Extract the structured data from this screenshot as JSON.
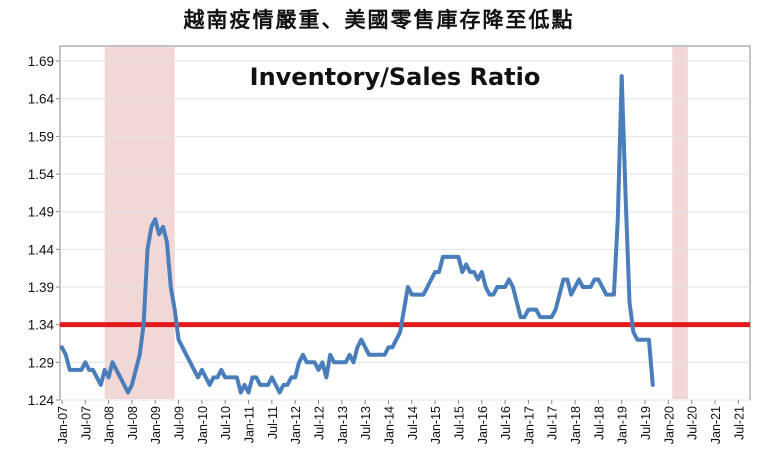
{
  "page": {
    "title": "越南疫情嚴重、美國零售庫存降至低點"
  },
  "chart_data": {
    "type": "line",
    "title": "Inventory/Sales Ratio",
    "xlabel": "",
    "ylabel": "",
    "ylim": [
      1.24,
      1.71
    ],
    "xlim": [
      "2007-01",
      "2021-10"
    ],
    "y_ticks": [
      "1.69",
      "1.64",
      "1.59",
      "1.54",
      "1.49",
      "1.44",
      "1.39",
      "1.34",
      "1.29",
      "1.24"
    ],
    "x_ticks": [
      "Jan-07",
      "Jul-07",
      "Jan-08",
      "Jul-08",
      "Jan-09",
      "Jul-09",
      "Jan-10",
      "Jul-10",
      "Jan-11",
      "Jul-11",
      "Jan-12",
      "Jul-12",
      "Jan-13",
      "Jul-13",
      "Jan-14",
      "Jul-14",
      "Jan-15",
      "Jul-15",
      "Jan-16",
      "Jul-16",
      "Jan-17",
      "Jul-17",
      "Jan-18",
      "Jul-18",
      "Jan-19",
      "Jul-19",
      "Jan-20",
      "Jul-20",
      "Jan-21",
      "Jul-21"
    ],
    "reference_line": {
      "value": 1.34,
      "color": "#e31a1c"
    },
    "recession_bands": [
      {
        "start": "2007-12",
        "end": "2009-06",
        "color": "#f2d7d7"
      },
      {
        "start": "2020-02",
        "end": "2020-06",
        "color": "#f2d7d7"
      }
    ],
    "grid": "horizontal",
    "series": [
      {
        "color": "#4a7ebb",
        "points": [
          [
            "2007-01",
            1.31
          ],
          [
            "2007-02",
            1.3
          ],
          [
            "2007-03",
            1.28
          ],
          [
            "2007-04",
            1.28
          ],
          [
            "2007-05",
            1.28
          ],
          [
            "2007-06",
            1.28
          ],
          [
            "2007-07",
            1.29
          ],
          [
            "2007-08",
            1.28
          ],
          [
            "2007-09",
            1.28
          ],
          [
            "2007-10",
            1.27
          ],
          [
            "2007-11",
            1.26
          ],
          [
            "2007-12",
            1.28
          ],
          [
            "2008-01",
            1.27
          ],
          [
            "2008-02",
            1.29
          ],
          [
            "2008-03",
            1.28
          ],
          [
            "2008-04",
            1.27
          ],
          [
            "2008-05",
            1.26
          ],
          [
            "2008-06",
            1.25
          ],
          [
            "2008-07",
            1.26
          ],
          [
            "2008-08",
            1.28
          ],
          [
            "2008-09",
            1.3
          ],
          [
            "2008-10",
            1.34
          ],
          [
            "2008-11",
            1.44
          ],
          [
            "2008-12",
            1.47
          ],
          [
            "2009-01",
            1.48
          ],
          [
            "2009-02",
            1.46
          ],
          [
            "2009-03",
            1.47
          ],
          [
            "2009-04",
            1.45
          ],
          [
            "2009-05",
            1.39
          ],
          [
            "2009-06",
            1.36
          ],
          [
            "2009-07",
            1.32
          ],
          [
            "2009-08",
            1.31
          ],
          [
            "2009-09",
            1.3
          ],
          [
            "2009-10",
            1.29
          ],
          [
            "2009-11",
            1.28
          ],
          [
            "2009-12",
            1.27
          ],
          [
            "2010-01",
            1.28
          ],
          [
            "2010-02",
            1.27
          ],
          [
            "2010-03",
            1.26
          ],
          [
            "2010-04",
            1.27
          ],
          [
            "2010-05",
            1.27
          ],
          [
            "2010-06",
            1.28
          ],
          [
            "2010-07",
            1.27
          ],
          [
            "2010-08",
            1.27
          ],
          [
            "2010-09",
            1.27
          ],
          [
            "2010-10",
            1.27
          ],
          [
            "2010-11",
            1.25
          ],
          [
            "2010-12",
            1.26
          ],
          [
            "2011-01",
            1.25
          ],
          [
            "2011-02",
            1.27
          ],
          [
            "2011-03",
            1.27
          ],
          [
            "2011-04",
            1.26
          ],
          [
            "2011-05",
            1.26
          ],
          [
            "2011-06",
            1.26
          ],
          [
            "2011-07",
            1.27
          ],
          [
            "2011-08",
            1.26
          ],
          [
            "2011-09",
            1.25
          ],
          [
            "2011-10",
            1.26
          ],
          [
            "2011-11",
            1.26
          ],
          [
            "2011-12",
            1.27
          ],
          [
            "2012-01",
            1.27
          ],
          [
            "2012-02",
            1.29
          ],
          [
            "2012-03",
            1.3
          ],
          [
            "2012-04",
            1.29
          ],
          [
            "2012-05",
            1.29
          ],
          [
            "2012-06",
            1.29
          ],
          [
            "2012-07",
            1.28
          ],
          [
            "2012-08",
            1.29
          ],
          [
            "2012-09",
            1.27
          ],
          [
            "2012-10",
            1.3
          ],
          [
            "2012-11",
            1.29
          ],
          [
            "2012-12",
            1.29
          ],
          [
            "2013-01",
            1.29
          ],
          [
            "2013-02",
            1.29
          ],
          [
            "2013-03",
            1.3
          ],
          [
            "2013-04",
            1.29
          ],
          [
            "2013-05",
            1.31
          ],
          [
            "2013-06",
            1.32
          ],
          [
            "2013-07",
            1.31
          ],
          [
            "2013-08",
            1.3
          ],
          [
            "2013-09",
            1.3
          ],
          [
            "2013-10",
            1.3
          ],
          [
            "2013-11",
            1.3
          ],
          [
            "2013-12",
            1.3
          ],
          [
            "2014-01",
            1.31
          ],
          [
            "2014-02",
            1.31
          ],
          [
            "2014-03",
            1.32
          ],
          [
            "2014-04",
            1.33
          ],
          [
            "2014-05",
            1.36
          ],
          [
            "2014-06",
            1.39
          ],
          [
            "2014-07",
            1.38
          ],
          [
            "2014-08",
            1.38
          ],
          [
            "2014-09",
            1.38
          ],
          [
            "2014-10",
            1.38
          ],
          [
            "2014-11",
            1.39
          ],
          [
            "2014-12",
            1.4
          ],
          [
            "2015-01",
            1.41
          ],
          [
            "2015-02",
            1.41
          ],
          [
            "2015-03",
            1.43
          ],
          [
            "2015-04",
            1.43
          ],
          [
            "2015-05",
            1.43
          ],
          [
            "2015-06",
            1.43
          ],
          [
            "2015-07",
            1.43
          ],
          [
            "2015-08",
            1.41
          ],
          [
            "2015-09",
            1.42
          ],
          [
            "2015-10",
            1.41
          ],
          [
            "2015-11",
            1.41
          ],
          [
            "2015-12",
            1.4
          ],
          [
            "2016-01",
            1.41
          ],
          [
            "2016-02",
            1.39
          ],
          [
            "2016-03",
            1.38
          ],
          [
            "2016-04",
            1.38
          ],
          [
            "2016-05",
            1.39
          ],
          [
            "2016-06",
            1.39
          ],
          [
            "2016-07",
            1.39
          ],
          [
            "2016-08",
            1.4
          ],
          [
            "2016-09",
            1.39
          ],
          [
            "2016-10",
            1.37
          ],
          [
            "2016-11",
            1.35
          ],
          [
            "2016-12",
            1.35
          ],
          [
            "2017-01",
            1.36
          ],
          [
            "2017-02",
            1.36
          ],
          [
            "2017-03",
            1.36
          ],
          [
            "2017-04",
            1.35
          ],
          [
            "2017-05",
            1.35
          ],
          [
            "2017-06",
            1.35
          ],
          [
            "2017-07",
            1.35
          ],
          [
            "2017-08",
            1.36
          ],
          [
            "2017-09",
            1.38
          ],
          [
            "2017-10",
            1.4
          ],
          [
            "2017-11",
            1.4
          ],
          [
            "2017-12",
            1.38
          ],
          [
            "2018-01",
            1.39
          ],
          [
            "2018-02",
            1.4
          ],
          [
            "2018-03",
            1.39
          ],
          [
            "2018-04",
            1.39
          ],
          [
            "2018-05",
            1.39
          ],
          [
            "2018-06",
            1.4
          ],
          [
            "2018-07",
            1.4
          ],
          [
            "2018-08",
            1.39
          ],
          [
            "2018-09",
            1.38
          ],
          [
            "2018-10",
            1.38
          ],
          [
            "2018-11",
            1.38
          ],
          [
            "2018-12",
            1.48
          ],
          [
            "2019-01",
            1.67
          ],
          [
            "2019-02",
            1.51
          ],
          [
            "2019-03",
            1.37
          ],
          [
            "2019-04",
            1.33
          ],
          [
            "2019-05",
            1.32
          ],
          [
            "2019-06",
            1.32
          ],
          [
            "2019-07",
            1.32
          ],
          [
            "2019-08",
            1.32
          ],
          [
            "2019-09",
            1.26
          ]
        ]
      }
    ]
  }
}
